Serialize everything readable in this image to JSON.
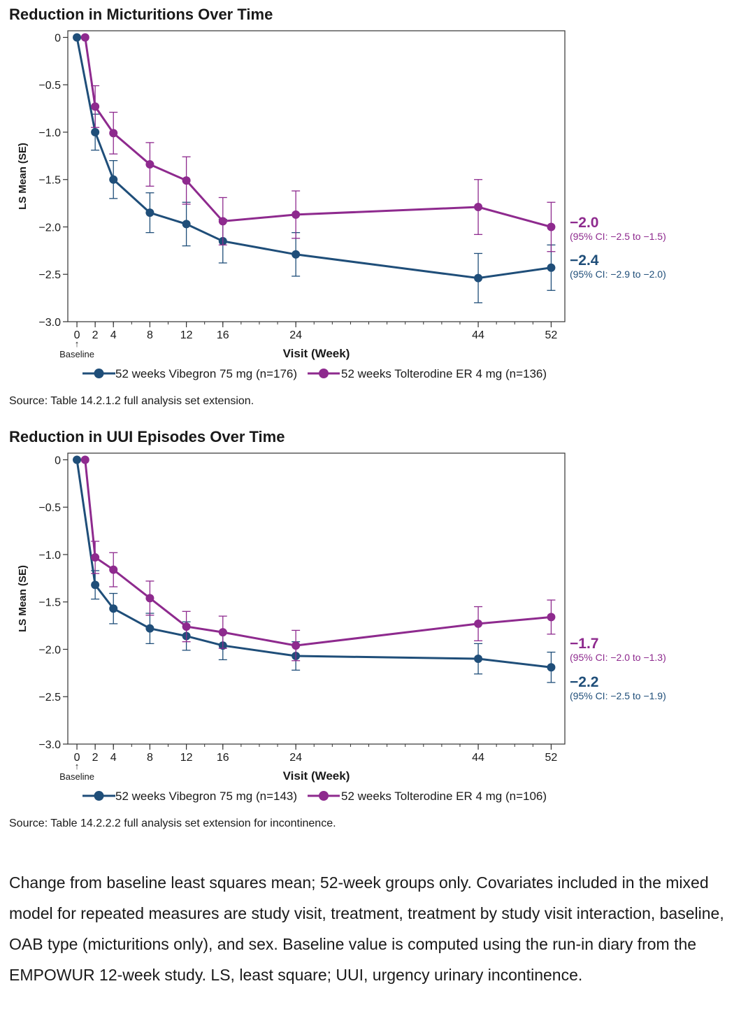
{
  "chart_data": [
    {
      "type": "line",
      "title": "Reduction in Micturitions Over Time",
      "xlabel": "Visit (Week)",
      "ylabel": "LS Mean (SE)",
      "x_ticks": [
        0,
        2,
        4,
        8,
        12,
        16,
        24,
        44,
        52
      ],
      "x_tick_labels": [
        "0",
        "2",
        "4",
        "8",
        "12",
        "16",
        "24",
        "44",
        "52"
      ],
      "baseline_label": "Baseline",
      "baseline_arrow": "↑",
      "xlim": [
        0,
        52
      ],
      "ylim": [
        -3.0,
        0
      ],
      "y_ticks": [
        0,
        -0.5,
        -1.0,
        -1.5,
        -2.0,
        -2.5,
        -3.0
      ],
      "y_tick_labels": [
        "0",
        "−0.5",
        "−1.0",
        "−1.5",
        "−2.0",
        "−2.5",
        "−3.0"
      ],
      "series": [
        {
          "name": "52 weeks Vibegron 75 mg (n=176)",
          "color": "#1f4e79",
          "x": [
            0,
            2,
            4,
            8,
            12,
            16,
            24,
            44,
            52
          ],
          "y": [
            0,
            -1.0,
            -1.5,
            -1.85,
            -1.97,
            -2.15,
            -2.29,
            -2.54,
            -2.43
          ],
          "se": [
            0,
            0.19,
            0.2,
            0.21,
            0.23,
            0.23,
            0.23,
            0.26,
            0.24
          ],
          "end_value": "−2.4",
          "end_ci": "(95% CI: −2.9 to −2.0)"
        },
        {
          "name": "52 weeks Tolterodine ER 4 mg (n=136)",
          "color": "#8e2a8e",
          "x": [
            0,
            2,
            4,
            8,
            12,
            16,
            24,
            44,
            52
          ],
          "y": [
            0,
            -0.73,
            -1.01,
            -1.34,
            -1.51,
            -1.94,
            -1.87,
            -1.79,
            -2.0
          ],
          "se": [
            0,
            0.22,
            0.22,
            0.23,
            0.25,
            0.25,
            0.25,
            0.29,
            0.26
          ],
          "end_value": "−2.0",
          "end_ci": "(95% CI: −2.5 to −1.5)"
        }
      ],
      "source": "Source: Table 14.2.1.2 full analysis set extension."
    },
    {
      "type": "line",
      "title": "Reduction in UUI Episodes Over Time",
      "xlabel": "Visit (Week)",
      "ylabel": "LS Mean (SE)",
      "x_ticks": [
        0,
        2,
        4,
        8,
        12,
        16,
        24,
        44,
        52
      ],
      "x_tick_labels": [
        "0",
        "2",
        "4",
        "8",
        "12",
        "16",
        "24",
        "44",
        "52"
      ],
      "baseline_label": "Baseline",
      "baseline_arrow": "↑",
      "xlim": [
        0,
        52
      ],
      "ylim": [
        -3.0,
        0
      ],
      "y_ticks": [
        0,
        -0.5,
        -1.0,
        -1.5,
        -2.0,
        -2.5,
        -3.0
      ],
      "y_tick_labels": [
        "0",
        "−0.5",
        "−1.0",
        "−1.5",
        "−2.0",
        "−2.5",
        "−3.0"
      ],
      "series": [
        {
          "name": "52 weeks Vibegron 75 mg (n=143)",
          "color": "#1f4e79",
          "x": [
            0,
            2,
            4,
            8,
            12,
            16,
            24,
            44,
            52
          ],
          "y": [
            0,
            -1.32,
            -1.57,
            -1.78,
            -1.86,
            -1.96,
            -2.07,
            -2.1,
            -2.19
          ],
          "se": [
            0,
            0.15,
            0.16,
            0.16,
            0.15,
            0.15,
            0.15,
            0.16,
            0.16
          ],
          "end_value": "−2.2",
          "end_ci": "(95% CI: −2.5 to −1.9)"
        },
        {
          "name": "52 weeks Tolterodine ER 4 mg (n=106)",
          "color": "#8e2a8e",
          "x": [
            0,
            2,
            4,
            8,
            12,
            16,
            24,
            44,
            52
          ],
          "y": [
            0,
            -1.03,
            -1.16,
            -1.46,
            -1.76,
            -1.82,
            -1.96,
            -1.73,
            -1.66
          ],
          "se": [
            0,
            0.17,
            0.18,
            0.18,
            0.16,
            0.17,
            0.16,
            0.18,
            0.18
          ],
          "end_value": "−1.7",
          "end_ci": "(95% CI: −2.0 to −1.3)"
        }
      ],
      "source": "Source: Table 14.2.2.2 full analysis set extension for incontinence."
    }
  ],
  "footnote": "Change from baseline least squares mean; 52-week groups only. Covariates included in the mixed model for repeated measures are study visit, treatment, treatment by study visit interaction, baseline, OAB type (micturitions only), and sex. Baseline value is computed using the run-in diary from the EMPOWUR 12-week study. LS, least square; UUI, urgency urinary incontinence."
}
